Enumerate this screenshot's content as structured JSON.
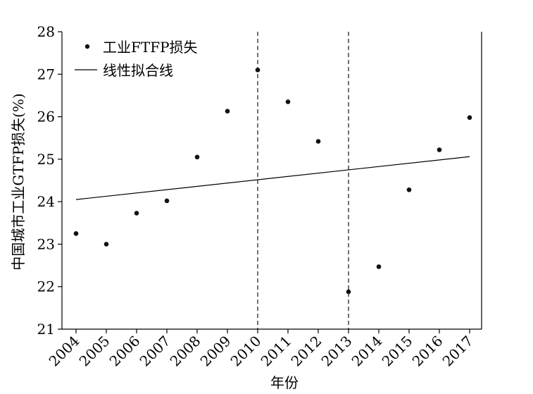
{
  "chart_data": {
    "type": "scatter",
    "title": "",
    "xlabel": "年份",
    "ylabel": "中国城市工业GTFP损失(%)",
    "categories": [
      "2004",
      "2005",
      "2006",
      "2007",
      "2008",
      "2009",
      "2010",
      "2011",
      "2012",
      "2013",
      "2014",
      "2015",
      "2016",
      "2017"
    ],
    "ylim": [
      21,
      28
    ],
    "yticks": [
      "21",
      "22",
      "23",
      "24",
      "25",
      "26",
      "27",
      "28"
    ],
    "series": [
      {
        "name": "工业FTFP损失",
        "kind": "points",
        "values": [
          23.25,
          23.0,
          23.73,
          24.02,
          25.05,
          26.13,
          27.1,
          26.35,
          25.42,
          21.88,
          22.47,
          24.28,
          25.22,
          25.98
        ]
      },
      {
        "name": "线性拟合线",
        "kind": "line",
        "start": 24.05,
        "end": 25.06
      }
    ],
    "reference_lines_x": [
      "2010",
      "2013"
    ],
    "legend_position": "top-left",
    "grid": false
  }
}
